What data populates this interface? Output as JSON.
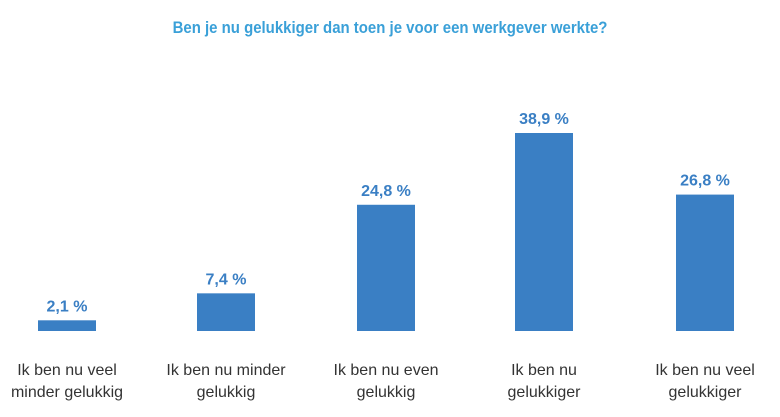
{
  "chart_data": {
    "type": "bar",
    "title": "Ben je nu gelukkiger dan toen je voor een werkgever werkte?",
    "categories": [
      [
        "Ik ben nu veel",
        "minder gelukkig"
      ],
      [
        "Ik ben nu minder",
        "gelukkig"
      ],
      [
        "Ik ben nu even",
        "gelukkig"
      ],
      [
        "Ik ben nu",
        "gelukkiger"
      ],
      [
        "Ik ben nu veel",
        "gelukkiger"
      ]
    ],
    "values": [
      2.1,
      7.4,
      24.8,
      38.9,
      26.8
    ],
    "data_labels": [
      "2,1 %",
      "7,4 %",
      "24,8 %",
      "38,9 %",
      "26,8 %"
    ],
    "xlabel": "",
    "ylabel": "",
    "ylim": [
      0,
      40
    ],
    "grid": false,
    "colors": {
      "bar": "#3a7fc4",
      "title": "#3aa0d8",
      "data_label": "#3a7fc4",
      "category_label": "#333333"
    }
  }
}
